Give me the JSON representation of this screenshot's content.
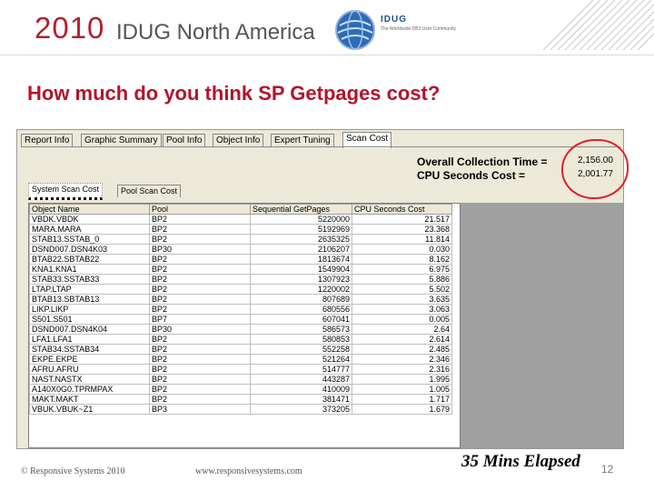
{
  "header": {
    "year": "2010",
    "event": "IDUG North America",
    "logo_text": "IDUG",
    "logo_tagline": "The Worldwide DB2 User Community"
  },
  "slide": {
    "title": "How much do you think SP Getpages cost?"
  },
  "app": {
    "tabs": [
      "Report Info",
      "Graphic Summary",
      "Pool Info",
      "Object Info",
      "Expert Tuning",
      "Scan Cost"
    ],
    "active_tab": "Scan Cost",
    "summary": {
      "overall_label": "Overall Collection Time =",
      "overall_value": "2,156.00",
      "cpu_label": "CPU Seconds Cost =",
      "cpu_value": "2,001.77"
    },
    "subtabs": [
      "System Scan Cost",
      "Pool Scan Cost"
    ],
    "active_subtab": "System Scan Cost",
    "columns": [
      "Object Name",
      "Pool",
      "Sequential GetPages",
      "CPU Seconds Cost"
    ],
    "rows": [
      [
        "VBDK.VBDK",
        "BP2",
        "5220000",
        "21.517"
      ],
      [
        "MARA.MARA",
        "BP2",
        "5192969",
        "23.368"
      ],
      [
        "STAB13.SSTAB_0",
        "BP2",
        "2635325",
        "11.814"
      ],
      [
        "DSND007.DSN4K03",
        "BP30",
        "2106207",
        "0.030"
      ],
      [
        "BTAB22.SBTAB22",
        "BP2",
        "1813674",
        "8.162"
      ],
      [
        "KNA1.KNA1",
        "BP2",
        "1549904",
        "6.975"
      ],
      [
        "STAB33.SSTAB33",
        "BP2",
        "1307923",
        "5.886"
      ],
      [
        "LTAP.LTAP",
        "BP2",
        "1220002",
        "5.502"
      ],
      [
        "BTAB13.SBTAB13",
        "BP2",
        "807689",
        "3.635"
      ],
      [
        "LIKP.LIKP",
        "BP2",
        "680556",
        "3.063"
      ],
      [
        "S501.S501",
        "BP7",
        "607041",
        "0.005"
      ],
      [
        "DSND007.DSN4K04",
        "BP30",
        "586573",
        "2.64"
      ],
      [
        "LFA1.LFA1",
        "BP2",
        "580853",
        "2.614"
      ],
      [
        "STAB34.SSTAB34",
        "BP2",
        "552258",
        "2.485"
      ],
      [
        "EKPE.EKPE",
        "BP2",
        "521264",
        "2.346"
      ],
      [
        "AFRU.AFRU",
        "BP2",
        "514777",
        "2.316"
      ],
      [
        "NAST.NASTX",
        "BP2",
        "443287",
        "1.995"
      ],
      [
        "A140X0G0.TPRMPAX",
        "BP2",
        "410009",
        "1.005"
      ],
      [
        "MAKT.MAKT",
        "BP2",
        "381471",
        "1.717"
      ],
      [
        "VBUK.VBUK~Z1",
        "BP3",
        "373205",
        "1.679"
      ]
    ]
  },
  "footer": {
    "copyright": "© Responsive Systems 2010",
    "url": "www.responsivesystems.com",
    "elapsed": "35 Mins Elapsed",
    "page": "12"
  },
  "colors": {
    "accent_red": "#b3142c",
    "annotation_red": "#e0202a",
    "logo_blue": "#234e91"
  }
}
